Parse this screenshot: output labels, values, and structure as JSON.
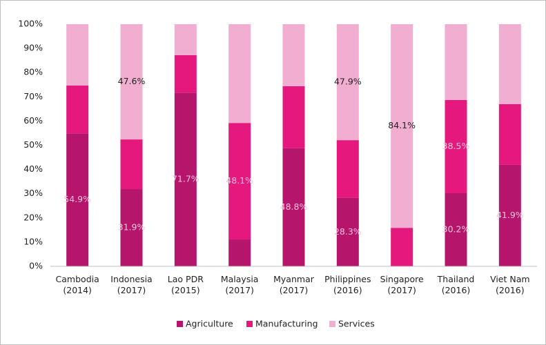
{
  "chart_data": {
    "type": "bar",
    "stacked": true,
    "categories": [
      "Cambodia (2014)",
      "Indonesia (2017)",
      "Lao PDR (2015)",
      "Malaysia (2017)",
      "Myanmar (2017)",
      "Philippines (2016)",
      "Singapore (2017)",
      "Thailand (2016)",
      "Viet Nam (2016)"
    ],
    "series": [
      {
        "name": "Agriculture",
        "color": "#b5166b",
        "values": [
          54.9,
          31.9,
          71.7,
          11.1,
          48.8,
          28.3,
          0,
          30.2,
          41.9
        ],
        "value_labels": [
          "54.9%",
          "31.9%",
          "71.7%",
          null,
          "48.8%",
          "28.3%",
          null,
          "30.2%",
          "41.9%"
        ]
      },
      {
        "name": "Manufacturing",
        "color": "#e5187e",
        "values": [
          19.8,
          20.5,
          15.5,
          48.1,
          25.6,
          23.8,
          15.9,
          38.5,
          25.1
        ],
        "value_labels": [
          null,
          null,
          null,
          "48.1%",
          null,
          null,
          null,
          "38.5%",
          null
        ]
      },
      {
        "name": "Services",
        "color": "#f2aed0",
        "values": [
          25.3,
          47.6,
          12.8,
          40.8,
          25.6,
          47.9,
          84.1,
          31.3,
          33.0
        ],
        "value_labels": [
          null,
          "47.6%",
          null,
          null,
          null,
          "47.9%",
          "84.1%",
          null,
          null
        ]
      }
    ],
    "ylim": [
      0,
      100
    ],
    "yticks": [
      {
        "value": 0,
        "label": "0%"
      },
      {
        "value": 10,
        "label": "10%"
      },
      {
        "value": 20,
        "label": "20%"
      },
      {
        "value": 30,
        "label": "30%"
      },
      {
        "value": 40,
        "label": "40%"
      },
      {
        "value": 50,
        "label": "50%"
      },
      {
        "value": 60,
        "label": "60%"
      },
      {
        "value": 70,
        "label": "70%"
      },
      {
        "value": 80,
        "label": "80%"
      },
      {
        "value": 90,
        "label": "90%"
      },
      {
        "value": 100,
        "label": "100%"
      }
    ],
    "grid": false,
    "legend": "bottom"
  }
}
